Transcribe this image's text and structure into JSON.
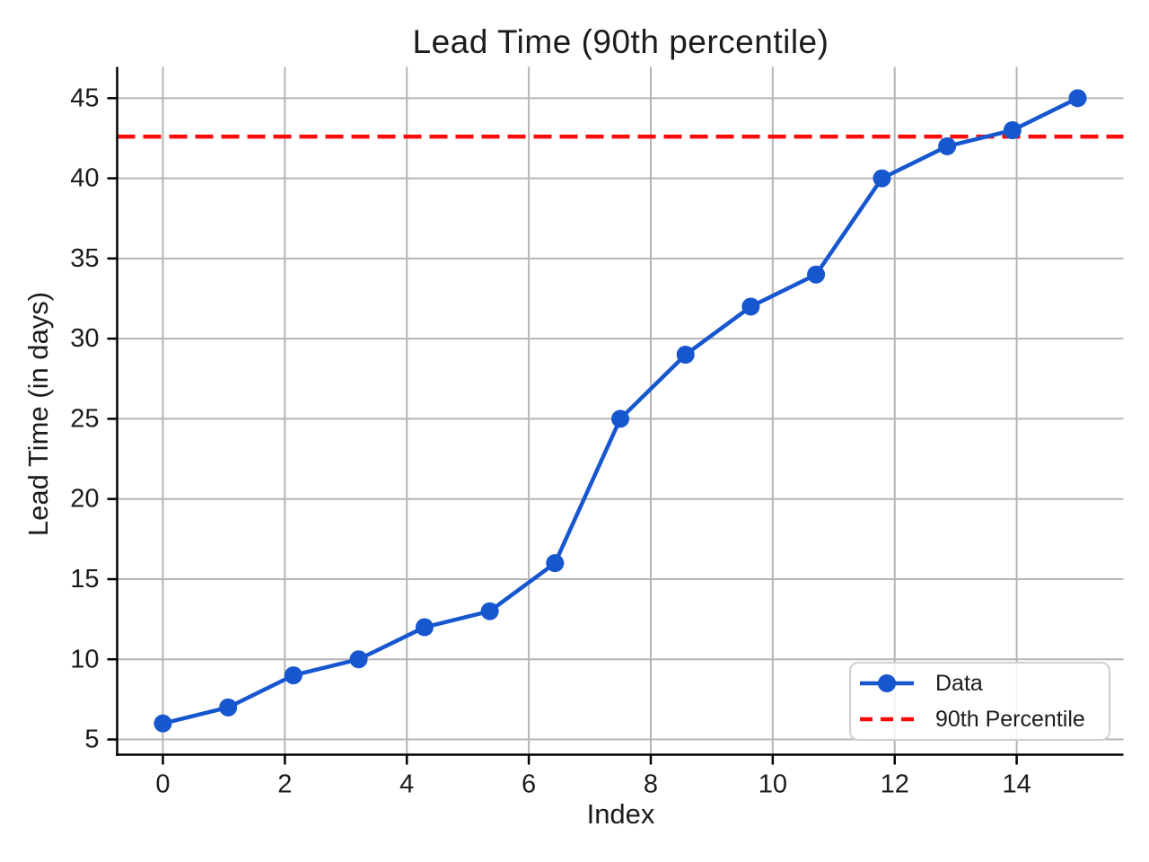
{
  "figure": {
    "background": "#ffffff",
    "text_color": "#1c1c1c",
    "grid_color": "#b5b5b5",
    "spine_color": "#000000"
  },
  "chart_data": {
    "type": "line",
    "title": "Lead Time (90th percentile)",
    "xlabel": "Index",
    "ylabel": "Lead Time (in days)",
    "x": [
      0,
      1.07,
      2.14,
      3.21,
      4.29,
      5.36,
      6.43,
      7.5,
      8.57,
      9.64,
      10.71,
      11.79,
      12.86,
      13.93,
      15
    ],
    "series": [
      {
        "name": "Data",
        "type": "line",
        "marker": "circle",
        "color": "#1656cf",
        "values": [
          6,
          7,
          9,
          10,
          12,
          13,
          16,
          25,
          29,
          32,
          34,
          40,
          42,
          43,
          45
        ]
      },
      {
        "name": "90th Percentile",
        "type": "hline",
        "linestyle": "dashed",
        "color": "#fa0a0a",
        "value": 42.6
      }
    ],
    "xticks": [
      0,
      2,
      4,
      6,
      8,
      10,
      12,
      14
    ],
    "yticks": [
      5,
      10,
      15,
      20,
      25,
      30,
      35,
      40,
      45
    ],
    "xlim": [
      -0.75,
      15.75
    ],
    "ylim": [
      4.05,
      46.95
    ],
    "grid": true,
    "legend_position": "lower right"
  }
}
